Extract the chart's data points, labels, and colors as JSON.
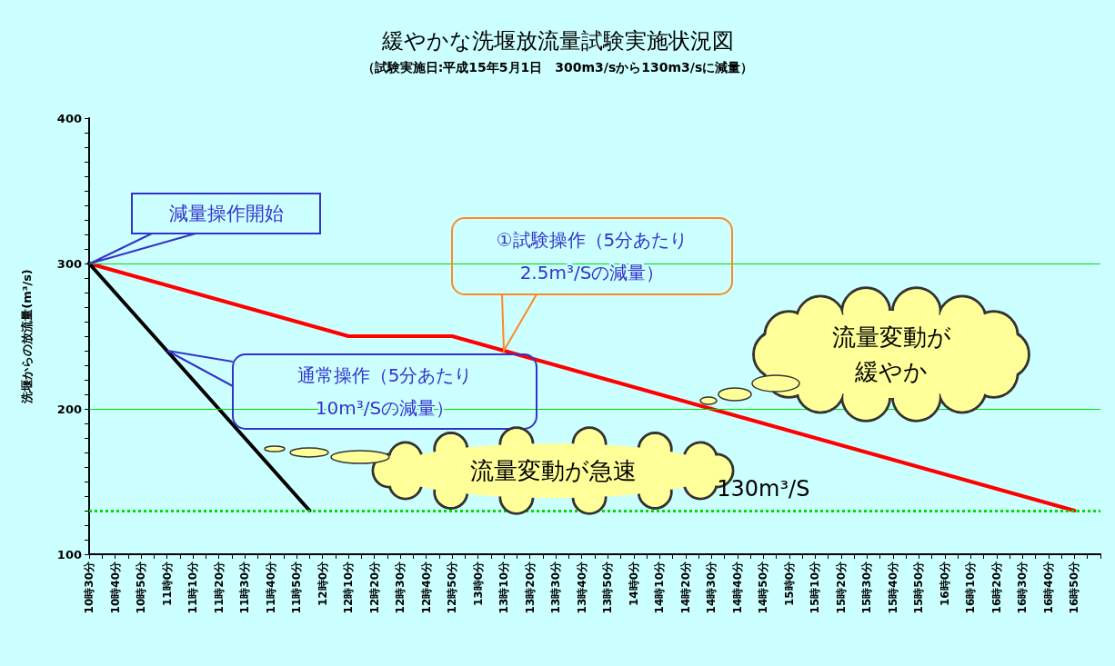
{
  "chart_data": {
    "type": "line",
    "title": "緩やかな洗堰放流量試験実施状況図",
    "subtitle": "（試験実施日:平成15年5月1日　300m3/sから130m3/sに減量）",
    "ylabel": "洗堰からの放流量(m³/s)",
    "categories": [
      "10時30分",
      null,
      "10時40分",
      null,
      "10時50分",
      null,
      "11時0分",
      null,
      "11時10分",
      null,
      "11時20分",
      null,
      "11時30分",
      null,
      "11時40分",
      null,
      "11時50分",
      null,
      "12時0分",
      null,
      "12時10分",
      null,
      "12時20分",
      null,
      "12時30分",
      null,
      "12時40分",
      null,
      "12時50分",
      null,
      "13時0分",
      null,
      "13時10分",
      null,
      "13時20分",
      null,
      "13時30分",
      null,
      "13時40分",
      null,
      "13時50分",
      null,
      "14時0分",
      null,
      "14時10分",
      null,
      "14時20分",
      null,
      "14時30分",
      null,
      "14時40分",
      null,
      "14時50分",
      null,
      "15時0分",
      null,
      "15時10分",
      null,
      "15時20分",
      null,
      "15時30分",
      null,
      "15時40分",
      null,
      "15時50分",
      null,
      "16時0分",
      null,
      "16時10分",
      null,
      "16時20分",
      null,
      "16時30分",
      null,
      "16時40分",
      null,
      "16時50分",
      null,
      null
    ],
    "series": [
      {
        "color": "#ff0000",
        "values": [
          300,
          297.5,
          295,
          292.5,
          290,
          287.5,
          285,
          282.5,
          280,
          277.5,
          275,
          272.5,
          270,
          267.5,
          265,
          262.5,
          260,
          257.5,
          255,
          252.5,
          250,
          250,
          250,
          250,
          250,
          250,
          250,
          250,
          250,
          247.5,
          245,
          242.5,
          240,
          237.5,
          235,
          232.5,
          230,
          227.5,
          225,
          222.5,
          220,
          217.5,
          215,
          212.5,
          210,
          207.5,
          205,
          202.5,
          200,
          197.5,
          195,
          192.5,
          190,
          187.5,
          185,
          182.5,
          180,
          177.5,
          175,
          172.5,
          170,
          167.5,
          165,
          162.5,
          160,
          157.5,
          155,
          152.5,
          150,
          147.5,
          145,
          142.5,
          140,
          137.5,
          135,
          132.5,
          130,
          null,
          null
        ]
      },
      {
        "color": "#000000",
        "values": [
          300,
          290,
          280,
          270,
          260,
          250,
          240,
          230,
          220,
          210,
          200,
          190,
          180,
          170,
          160,
          150,
          140,
          130,
          null,
          null,
          null,
          null,
          null,
          null,
          null,
          null,
          null,
          null,
          null,
          null,
          null,
          null,
          null,
          null,
          null,
          null,
          null,
          null,
          null,
          null,
          null,
          null,
          null,
          null,
          null,
          null,
          null,
          null,
          null,
          null,
          null,
          null,
          null,
          null,
          null,
          null,
          null,
          null,
          null,
          null,
          null,
          null,
          null,
          null,
          null,
          null,
          null,
          null,
          null,
          null,
          null,
          null,
          null,
          null,
          null,
          null,
          null,
          null,
          null
        ]
      }
    ],
    "ylim": [
      100,
      400
    ],
    "yticks": [
      100,
      {
        "value": 110,
        "label": null
      },
      {
        "value": 120,
        "label": null
      },
      {
        "value": 130,
        "label": null
      },
      {
        "value": 140,
        "label": null
      },
      {
        "value": 150,
        "label": null
      },
      {
        "value": 160,
        "label": null
      },
      {
        "value": 170,
        "label": null
      },
      {
        "value": 180,
        "label": null
      },
      {
        "value": 190,
        "label": null
      },
      200,
      {
        "value": 210,
        "label": null
      },
      {
        "value": 220,
        "label": null
      },
      {
        "value": 230,
        "label": null
      },
      {
        "value": 240,
        "label": null
      },
      {
        "value": 250,
        "label": null
      },
      {
        "value": 260,
        "label": null
      },
      {
        "value": 270,
        "label": null
      },
      {
        "value": 280,
        "label": null
      },
      {
        "value": 290,
        "label": null
      },
      300,
      {
        "value": 310,
        "label": null
      },
      {
        "value": 320,
        "label": null
      },
      {
        "value": 330,
        "label": null
      },
      {
        "value": 340,
        "label": null
      },
      {
        "value": 350,
        "label": null
      },
      {
        "value": 360,
        "label": null
      },
      {
        "value": 370,
        "label": null
      },
      {
        "value": 380,
        "label": null
      },
      {
        "value": 390,
        "label": null
      },
      400
    ],
    "grid": "y",
    "marker": "none",
    "line_style": "solid",
    "ref_lines": [
      {
        "axis": "y",
        "value": 130,
        "label": "130m³/S",
        "color": "#00dd00",
        "line_style": "dotted"
      }
    ],
    "annotations": [
      "減量操作開始",
      "①試験操作（5分あたり2.5m³/Sの減量）",
      "通常操作（5分あたり10m³/Sの減量）",
      "流量変動が緩やか",
      "流量変動が急速"
    ]
  }
}
